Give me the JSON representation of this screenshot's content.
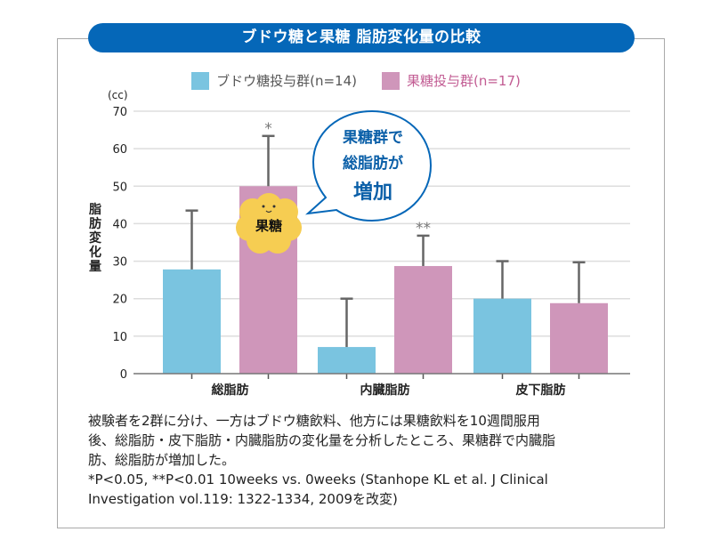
{
  "title": "ブドウ糖と果糖 脂肪変化量の比較",
  "colors": {
    "banner": "#0567b8",
    "glucose": "#7ac4e0",
    "fructose": "#cf96ba",
    "error_bar": "#666666",
    "bubble_stroke": "#0567b8",
    "bubble_text": "#0a5fa8",
    "badge": "#f6cd52"
  },
  "legend": [
    {
      "label": "ブドウ糖投与群(n=14)",
      "color": "#7ac4e0",
      "text_color": "#555555"
    },
    {
      "label": "果糖投与群(n=17)",
      "color": "#cf96ba",
      "text_color": "#c25c93"
    }
  ],
  "chart_data": {
    "type": "bar",
    "title": "ブドウ糖と果糖 脂肪変化量の比較",
    "xlabel": "",
    "ylabel": "脂肪変化量",
    "yunit": "(cc)",
    "ylim": [
      0,
      70
    ],
    "yticks": [
      0,
      10,
      20,
      30,
      40,
      50,
      60,
      70
    ],
    "grid": true,
    "legend_position": "top-center",
    "categories": [
      "総脂肪",
      "内臓脂肪",
      "皮下脂肪"
    ],
    "series": [
      {
        "name": "ブドウ糖投与群(n=14)",
        "values": [
          27.8,
          7.1,
          20.0
        ],
        "error_upper": [
          43.5,
          20.0,
          30.0
        ],
        "significance": [
          "",
          "",
          ""
        ]
      },
      {
        "name": "果糖投与群(n=17)",
        "values": [
          50.0,
          28.7,
          18.8
        ],
        "error_upper": [
          63.4,
          36.8,
          29.7
        ],
        "significance": [
          "*",
          "**",
          ""
        ]
      }
    ],
    "annotations": {
      "callout_lines": [
        "果糖群で",
        "総脂肪が",
        "増加"
      ],
      "badge": "果糖"
    }
  },
  "caption": {
    "lines": [
      "被験者を2群に分け、一方はブドウ糖飲料、他方には果糖飲料を10週間服用",
      "後、総脂肪・皮下脂肪・内臓脂肪の変化量を分析したところ、果糖群で内臓脂",
      "肪、総脂肪が増加した。",
      "*P<0.05, **P<0.01 10weeks vs. 0weeks (Stanhope KL et al. J Clinical",
      "Investigation vol.119: 1322-1334, 2009を改変)"
    ]
  }
}
